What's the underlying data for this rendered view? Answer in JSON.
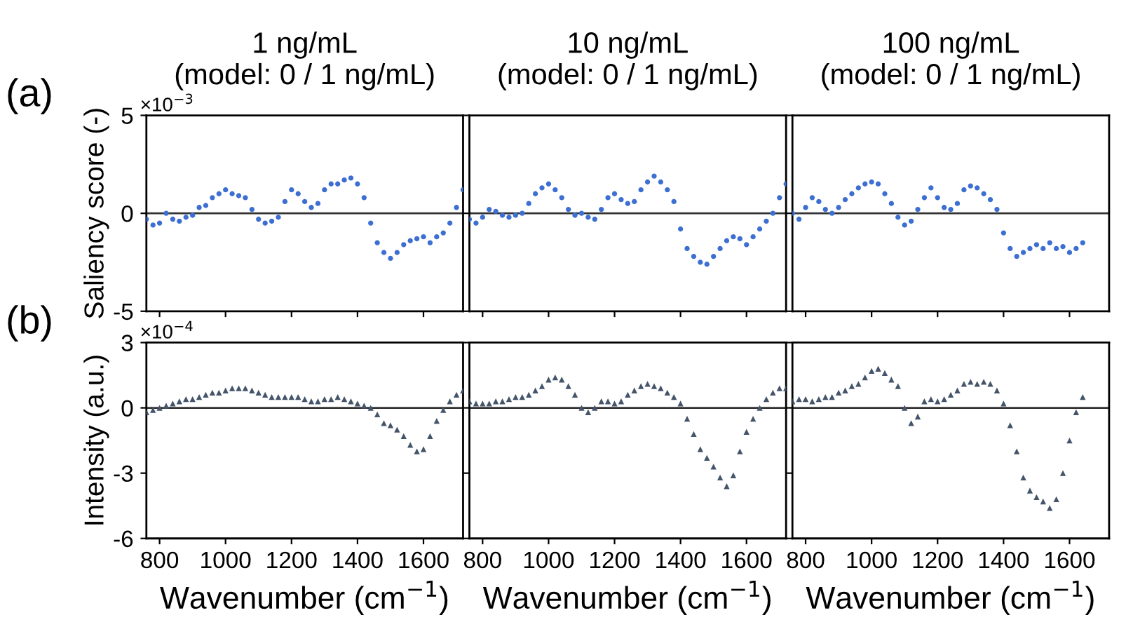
{
  "chart_data": [
    {
      "type": "scatter",
      "title": "1 ng/mL\n(model: 0 / 1 ng/mL)",
      "ylabel": "Saliency score (-)",
      "annotations": [
        "(a)",
        "×10$^{−3}$"
      ],
      "marker": "circle",
      "xlim": [
        760,
        1720
      ],
      "xticks": [
        800,
        1000,
        1200,
        1400,
        1600
      ],
      "ylim": [
        -5,
        5
      ],
      "yticks": [
        -5,
        0,
        5
      ],
      "tick_labels": "y",
      "ref_lines": [
        {
          "axis": "y",
          "value": 0,
          "color": "#333333"
        }
      ],
      "x": [
        760,
        780,
        800,
        820,
        840,
        860,
        880,
        900,
        920,
        940,
        960,
        980,
        1000,
        1020,
        1040,
        1060,
        1080,
        1100,
        1120,
        1140,
        1160,
        1180,
        1200,
        1220,
        1240,
        1260,
        1280,
        1300,
        1320,
        1340,
        1360,
        1380,
        1400,
        1420,
        1440,
        1460,
        1480,
        1500,
        1520,
        1540,
        1560,
        1580,
        1600,
        1620,
        1640,
        1660,
        1680,
        1700,
        1720
      ],
      "series": [
        {
          "color": "#3c6fd1",
          "values": [
            -0.3,
            -0.6,
            -0.5,
            0.0,
            -0.3,
            -0.4,
            -0.2,
            -0.1,
            0.3,
            0.4,
            0.8,
            1.0,
            1.2,
            1.0,
            0.9,
            0.8,
            0.2,
            -0.3,
            -0.5,
            -0.4,
            -0.2,
            0.6,
            1.2,
            1.0,
            0.6,
            0.3,
            0.5,
            1.2,
            1.5,
            1.5,
            1.7,
            1.8,
            1.5,
            0.8,
            -0.5,
            -1.5,
            -2.0,
            -2.3,
            -2.0,
            -1.6,
            -1.4,
            -1.3,
            -1.2,
            -1.5,
            -1.2,
            -1.0,
            -0.5,
            0.3,
            1.2
          ]
        }
      ]
    },
    {
      "type": "scatter",
      "title": "10 ng/mL\n(model: 0 / 1 ng/mL)",
      "marker": "circle",
      "xlim": [
        760,
        1720
      ],
      "xticks": [
        800,
        1000,
        1200,
        1400,
        1600
      ],
      "ylim": [
        -5,
        5
      ],
      "yticks": [
        -5,
        0,
        5
      ],
      "tick_labels": false,
      "ref_lines": [
        {
          "axis": "y",
          "value": 0,
          "color": "#333333"
        }
      ],
      "x": [
        760,
        780,
        800,
        820,
        840,
        860,
        880,
        900,
        920,
        940,
        960,
        980,
        1000,
        1020,
        1040,
        1060,
        1080,
        1100,
        1120,
        1140,
        1160,
        1180,
        1200,
        1220,
        1240,
        1260,
        1280,
        1300,
        1320,
        1340,
        1360,
        1380,
        1400,
        1420,
        1440,
        1460,
        1480,
        1500,
        1520,
        1540,
        1560,
        1580,
        1600,
        1620,
        1640,
        1660,
        1680,
        1700,
        1720
      ],
      "series": [
        {
          "color": "#3c6fd1",
          "values": [
            -0.3,
            -0.5,
            -0.2,
            0.2,
            0.1,
            -0.1,
            -0.2,
            -0.1,
            0.0,
            0.5,
            1.0,
            1.3,
            1.5,
            1.2,
            0.8,
            0.2,
            -0.1,
            0.0,
            -0.2,
            -0.3,
            0.2,
            0.8,
            1.0,
            0.7,
            0.5,
            0.6,
            1.2,
            1.6,
            1.9,
            1.6,
            1.2,
            0.6,
            -0.8,
            -1.8,
            -2.2,
            -2.5,
            -2.6,
            -2.2,
            -1.8,
            -1.4,
            -1.2,
            -1.3,
            -1.6,
            -1.2,
            -0.8,
            -0.4,
            0.0,
            0.8,
            1.5
          ]
        }
      ]
    },
    {
      "type": "scatter",
      "title": "100 ng/mL\n(model: 0 / 1 ng/mL)",
      "marker": "circle",
      "xlim": [
        760,
        1720
      ],
      "xticks": [
        800,
        1000,
        1200,
        1400,
        1600
      ],
      "ylim": [
        -5,
        5
      ],
      "yticks": [
        -5,
        0,
        5
      ],
      "tick_labels": false,
      "ref_lines": [
        {
          "axis": "y",
          "value": 0,
          "color": "#333333"
        }
      ],
      "x": [
        760,
        780,
        800,
        820,
        840,
        860,
        880,
        900,
        920,
        940,
        960,
        980,
        1000,
        1020,
        1040,
        1060,
        1080,
        1100,
        1120,
        1140,
        1160,
        1180,
        1200,
        1220,
        1240,
        1260,
        1280,
        1300,
        1320,
        1340,
        1360,
        1380,
        1400,
        1420,
        1440,
        1460,
        1480,
        1500,
        1520,
        1540,
        1560,
        1580,
        1600,
        1620,
        1640
      ],
      "series": [
        {
          "color": "#3c6fd1",
          "values": [
            0.0,
            -0.3,
            0.3,
            0.8,
            0.6,
            0.2,
            0.0,
            0.3,
            0.7,
            1.0,
            1.3,
            1.5,
            1.6,
            1.5,
            1.0,
            0.5,
            -0.2,
            -0.6,
            -0.4,
            0.2,
            0.8,
            1.3,
            0.8,
            0.3,
            0.2,
            0.5,
            1.2,
            1.4,
            1.3,
            1.0,
            0.7,
            0.2,
            -1.0,
            -1.8,
            -2.2,
            -2.0,
            -1.8,
            -1.6,
            -1.8,
            -1.5,
            -1.8,
            -1.7,
            -2.0,
            -1.8,
            -1.5
          ]
        }
      ]
    },
    {
      "type": "scatter",
      "xlabel": "Wavenumber (cm$^{−1}$)",
      "ylabel": "Intensity (a.u.)",
      "annotations": [
        "(b)",
        "×10$^{−4}$"
      ],
      "marker": "triangle",
      "xlim": [
        760,
        1720
      ],
      "xticks": [
        800,
        1000,
        1200,
        1400,
        1600
      ],
      "ylim": [
        -6,
        3
      ],
      "yticks": [
        -6,
        -3,
        0,
        3
      ],
      "ref_lines": [
        {
          "axis": "y",
          "value": 0,
          "color": "#333333"
        }
      ],
      "x": [
        760,
        780,
        800,
        820,
        840,
        860,
        880,
        900,
        920,
        940,
        960,
        980,
        1000,
        1020,
        1040,
        1060,
        1080,
        1100,
        1120,
        1140,
        1160,
        1180,
        1200,
        1220,
        1240,
        1260,
        1280,
        1300,
        1320,
        1340,
        1360,
        1380,
        1400,
        1420,
        1440,
        1460,
        1480,
        1500,
        1520,
        1540,
        1560,
        1580,
        1600,
        1620,
        1640,
        1660,
        1680,
        1700,
        1720
      ],
      "series": [
        {
          "color": "#44546a",
          "values": [
            -0.2,
            -0.1,
            0.0,
            0.1,
            0.2,
            0.3,
            0.4,
            0.4,
            0.5,
            0.6,
            0.7,
            0.7,
            0.8,
            0.9,
            0.9,
            0.9,
            0.8,
            0.7,
            0.6,
            0.5,
            0.5,
            0.5,
            0.5,
            0.5,
            0.4,
            0.3,
            0.3,
            0.4,
            0.4,
            0.5,
            0.4,
            0.3,
            0.2,
            0.1,
            0.0,
            -0.3,
            -0.7,
            -0.8,
            -1.0,
            -1.3,
            -1.7,
            -2.0,
            -1.9,
            -1.3,
            -0.6,
            -0.1,
            0.3,
            0.6,
            0.8
          ]
        }
      ]
    },
    {
      "type": "scatter",
      "xlabel": "Wavenumber (cm$^{−1}$)",
      "marker": "triangle",
      "xlim": [
        760,
        1720
      ],
      "xticks": [
        800,
        1000,
        1200,
        1400,
        1600
      ],
      "ylim": [
        -6,
        3
      ],
      "yticks": [
        -6,
        -3,
        0,
        3
      ],
      "tick_labels": "x",
      "ref_lines": [
        {
          "axis": "y",
          "value": 0,
          "color": "#333333"
        }
      ],
      "x": [
        760,
        780,
        800,
        820,
        840,
        860,
        880,
        900,
        920,
        940,
        960,
        980,
        1000,
        1020,
        1040,
        1060,
        1080,
        1100,
        1120,
        1140,
        1160,
        1180,
        1200,
        1220,
        1240,
        1260,
        1280,
        1300,
        1320,
        1340,
        1360,
        1380,
        1400,
        1420,
        1440,
        1460,
        1480,
        1500,
        1520,
        1540,
        1560,
        1580,
        1600,
        1620,
        1640,
        1660,
        1680,
        1700,
        1720
      ],
      "series": [
        {
          "color": "#44546a",
          "values": [
            0.3,
            0.2,
            0.2,
            0.2,
            0.3,
            0.3,
            0.4,
            0.5,
            0.5,
            0.6,
            0.8,
            1.0,
            1.3,
            1.4,
            1.3,
            1.0,
            0.6,
            0.0,
            -0.2,
            0.0,
            0.3,
            0.3,
            0.2,
            0.3,
            0.6,
            0.8,
            1.0,
            1.1,
            1.0,
            0.9,
            0.7,
            0.5,
            0.2,
            -0.5,
            -1.2,
            -1.9,
            -2.3,
            -2.7,
            -3.2,
            -3.6,
            -3.1,
            -2.0,
            -1.1,
            -0.5,
            0.0,
            0.4,
            0.7,
            0.9,
            0.9
          ]
        }
      ]
    },
    {
      "type": "scatter",
      "xlabel": "Wavenumber (cm$^{−1}$)",
      "marker": "triangle",
      "xlim": [
        760,
        1720
      ],
      "xticks": [
        800,
        1000,
        1200,
        1400,
        1600
      ],
      "ylim": [
        -6,
        3
      ],
      "yticks": [
        -6,
        -3,
        0,
        3
      ],
      "tick_labels": "x",
      "ref_lines": [
        {
          "axis": "y",
          "value": 0,
          "color": "#333333"
        }
      ],
      "x": [
        760,
        780,
        800,
        820,
        840,
        860,
        880,
        900,
        920,
        940,
        960,
        980,
        1000,
        1020,
        1040,
        1060,
        1080,
        1100,
        1120,
        1140,
        1160,
        1180,
        1200,
        1220,
        1240,
        1260,
        1280,
        1300,
        1320,
        1340,
        1360,
        1380,
        1400,
        1420,
        1440,
        1460,
        1480,
        1500,
        1520,
        1540,
        1560,
        1580,
        1600,
        1620,
        1640
      ],
      "series": [
        {
          "color": "#44546a",
          "values": [
            0.3,
            0.4,
            0.4,
            0.3,
            0.4,
            0.5,
            0.5,
            0.7,
            0.8,
            1.0,
            1.1,
            1.4,
            1.7,
            1.8,
            1.6,
            1.3,
            1.0,
            0.0,
            -0.7,
            -0.4,
            0.3,
            0.4,
            0.3,
            0.4,
            0.6,
            0.8,
            1.1,
            1.2,
            1.1,
            1.2,
            1.1,
            0.8,
            0.2,
            -0.8,
            -2.0,
            -3.2,
            -3.8,
            -4.1,
            -4.3,
            -4.6,
            -4.2,
            -3.0,
            -1.5,
            -0.2,
            0.5
          ]
        }
      ]
    }
  ]
}
